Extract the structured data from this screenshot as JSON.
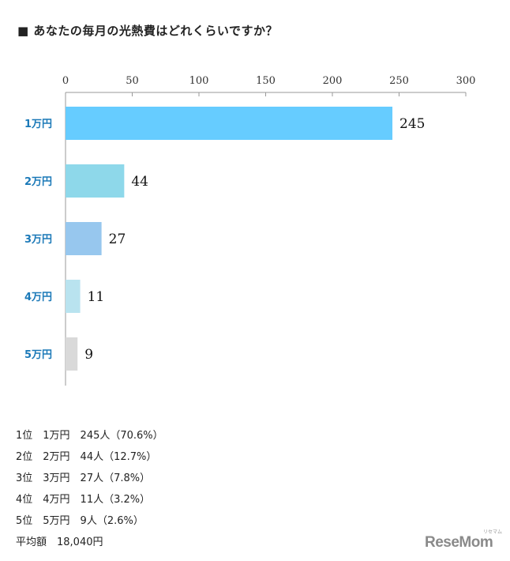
{
  "title": "■ あなたの毎月の光熱費はどれくらいですか？",
  "chart_data": {
    "type": "bar",
    "orientation": "horizontal",
    "categories": [
      "1万円",
      "2万円",
      "3万円",
      "4万円",
      "5万円"
    ],
    "values": [
      245,
      44,
      27,
      11,
      9
    ],
    "colors": [
      "#66ccff",
      "#8ed8ea",
      "#97c7ee",
      "#b9e3ef",
      "#d9d9d9"
    ],
    "xlim": [
      0,
      300
    ],
    "xticks": [
      0,
      50,
      100,
      150,
      200,
      250,
      300
    ],
    "xaxis_position": "top",
    "grid": false
  },
  "summary": [
    "1位　1万円　245人（70.6%）",
    "2位　2万円　44人（12.7%）",
    "3位　3万円　27人（7.8%）",
    "4位　4万円　11人（3.2%）",
    "5位　5万円　9人（2.6%）",
    "平均額　18,040円"
  ],
  "logo": {
    "text": "ReseMom",
    "sub": "リセマム"
  }
}
